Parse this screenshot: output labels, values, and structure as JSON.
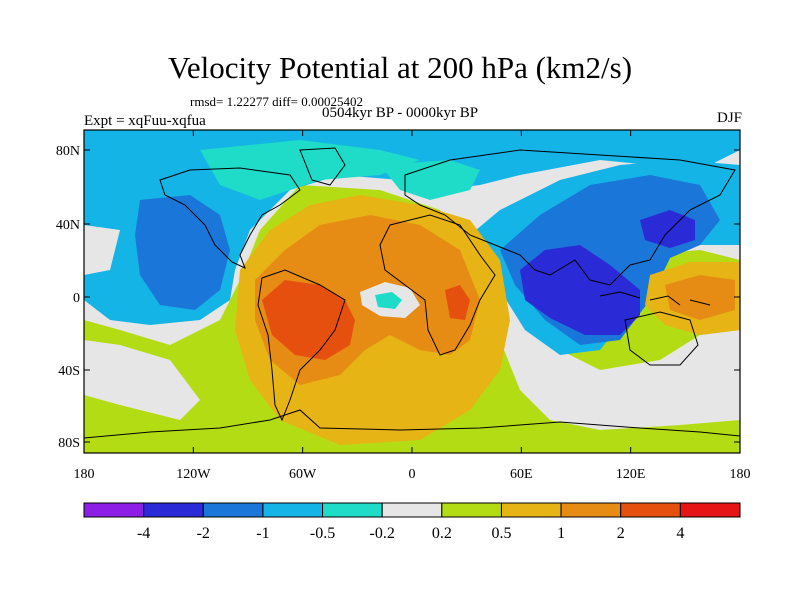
{
  "title": "Velocity Potential at 200 hPa (km2/s)",
  "stats": "rmsd= 1.22277 diff= 0.00025402",
  "period": "0504kyr BP - 0000kyr BP",
  "experiment": "Expt = xqFuu-xqfua",
  "season": "DJF",
  "lat_labels": [
    "80N",
    "40N",
    "0",
    "40S",
    "80S"
  ],
  "lon_labels": [
    "180",
    "120W",
    "60W",
    "0",
    "60E",
    "120E",
    "180"
  ],
  "colorbar": {
    "colors": [
      "#8c1ee6",
      "#2a2ad6",
      "#1a76d8",
      "#14b4e6",
      "#1edcc8",
      "#e6e6e6",
      "#b4dc14",
      "#e6b414",
      "#e68c14",
      "#e6500f",
      "#e61414"
    ],
    "labels": [
      "-4",
      "-2",
      "-1",
      "-0.5",
      "-0.2",
      "0.2",
      "0.5",
      "1",
      "2",
      "4"
    ]
  }
}
